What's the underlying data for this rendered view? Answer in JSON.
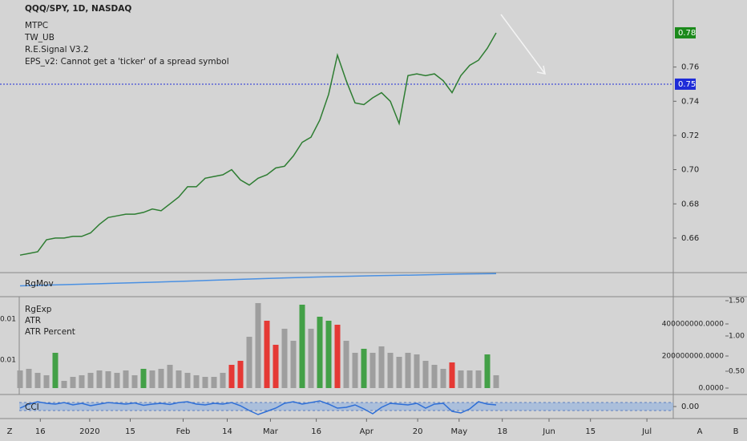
{
  "chart_data": [
    {
      "type": "line",
      "legend": [
        "QQQ/SPY, 1D, NASDAQ",
        "MTPC",
        "TW_UB",
        "R.E.Signal V3.2",
        "EPS_v2: Cannot get a 'ticker' of a spread symbol"
      ],
      "x": [
        0,
        1,
        2,
        3,
        4,
        5,
        6,
        7,
        8,
        9,
        10,
        11,
        12,
        13,
        14,
        15,
        16,
        17,
        18,
        19,
        20,
        21,
        22,
        23,
        24,
        25,
        26,
        27,
        28,
        29,
        30,
        31,
        32,
        33,
        34,
        35,
        36,
        37,
        38,
        39,
        40,
        41,
        42,
        43,
        44,
        45,
        46,
        47,
        48,
        49,
        50,
        51,
        52,
        53,
        54
      ],
      "values": [
        0.65,
        0.651,
        0.652,
        0.659,
        0.66,
        0.66,
        0.661,
        0.661,
        0.663,
        0.668,
        0.672,
        0.673,
        0.674,
        0.674,
        0.675,
        0.677,
        0.676,
        0.68,
        0.684,
        0.69,
        0.69,
        0.695,
        0.696,
        0.697,
        0.7,
        0.694,
        0.691,
        0.695,
        0.697,
        0.701,
        0.702,
        0.708,
        0.716,
        0.719,
        0.729,
        0.744,
        0.767,
        0.752,
        0.739,
        0.738,
        0.742,
        0.745,
        0.74,
        0.727,
        0.755,
        0.756,
        0.755,
        0.756,
        0.752,
        0.745,
        0.755,
        0.761,
        0.764,
        0.771,
        0.78
      ],
      "color": "#2e7d32",
      "xlim": [
        -2.2727,
        74.09
      ],
      "xticks": [
        {
          "value": 2.3,
          "label": "16"
        },
        {
          "value": 7.9,
          "label": "2020"
        },
        {
          "value": 12.5,
          "label": "15"
        },
        {
          "value": 18.5,
          "label": "Feb"
        },
        {
          "value": 23.5,
          "label": "14"
        },
        {
          "value": 28.4,
          "label": "Mar"
        },
        {
          "value": 33.6,
          "label": "16"
        },
        {
          "value": 39.3,
          "label": "Apr"
        },
        {
          "value": 45.1,
          "label": "20"
        },
        {
          "value": 49.8,
          "label": "May"
        },
        {
          "value": 54.7,
          "label": "18"
        },
        {
          "value": 60,
          "label": "Jun"
        },
        {
          "value": 64.7,
          "label": "15"
        },
        {
          "value": 71.1,
          "label": "Jul"
        }
      ],
      "ylim": [
        0.6398,
        0.7992
      ],
      "yticks": [
        0.66,
        0.68,
        {
          "value": 0.7,
          "label": "0.70"
        },
        0.72,
        0.74,
        0.76
      ],
      "badges": [
        {
          "value": 0.78,
          "color": "#1b8a1b"
        },
        {
          "value": 0.75,
          "color": "#1e2bd8"
        }
      ]
    },
    {
      "type": "line",
      "title": "RgMov",
      "x": [
        0,
        5,
        10,
        15,
        20,
        25,
        30,
        35,
        40,
        45,
        50,
        54
      ],
      "values": [
        0.45,
        0.5,
        0.55,
        0.6,
        0.66,
        0.72,
        0.78,
        0.83,
        0.87,
        0.9,
        0.94,
        0.96
      ],
      "color": "#4a90e2",
      "ylim": [
        0,
        1
      ]
    },
    {
      "type": "bar",
      "legend": [
        "RgExp",
        "ATR",
        "ATR Percent"
      ],
      "values": [
        110000000,
        120000000,
        95000000,
        80000000,
        220000000,
        45000000,
        70000000,
        80000000,
        95000000,
        110000000,
        105000000,
        95000000,
        110000000,
        80000000,
        120000000,
        110000000,
        120000000,
        145000000,
        110000000,
        95000000,
        80000000,
        70000000,
        70000000,
        95000000,
        145000000,
        170000000,
        320000000,
        530000000,
        420000000,
        270000000,
        370000000,
        295000000,
        520000000,
        370000000,
        445000000,
        420000000,
        395000000,
        295000000,
        220000000,
        245000000,
        220000000,
        260000000,
        220000000,
        195000000,
        220000000,
        210000000,
        170000000,
        145000000,
        120000000,
        160000000,
        110000000,
        110000000,
        110000000,
        210000000,
        80000000
      ],
      "colors": [
        "#9e9e9e",
        "#9e9e9e",
        "#9e9e9e",
        "#9e9e9e",
        "#43a047",
        "#9e9e9e",
        "#9e9e9e",
        "#9e9e9e",
        "#9e9e9e",
        "#9e9e9e",
        "#9e9e9e",
        "#9e9e9e",
        "#9e9e9e",
        "#9e9e9e",
        "#43a047",
        "#9e9e9e",
        "#9e9e9e",
        "#9e9e9e",
        "#9e9e9e",
        "#9e9e9e",
        "#9e9e9e",
        "#9e9e9e",
        "#9e9e9e",
        "#9e9e9e",
        "#e53935",
        "#e53935",
        "#9e9e9e",
        "#9e9e9e",
        "#e53935",
        "#e53935",
        "#9e9e9e",
        "#9e9e9e",
        "#43a047",
        "#9e9e9e",
        "#43a047",
        "#43a047",
        "#e53935",
        "#9e9e9e",
        "#9e9e9e",
        "#43a047",
        "#9e9e9e",
        "#9e9e9e",
        "#9e9e9e",
        "#9e9e9e",
        "#9e9e9e",
        "#9e9e9e",
        "#9e9e9e",
        "#9e9e9e",
        "#9e9e9e",
        "#e53935",
        "#9e9e9e",
        "#9e9e9e",
        "#9e9e9e",
        "#43a047",
        "#9e9e9e"
      ],
      "ylim": [
        -40000000,
        570000000
      ],
      "yticks": [
        {
          "value": 400000000,
          "label": "400000000.0000"
        },
        {
          "value": 200000000,
          "label": "200000000.0000"
        },
        {
          "value": 0,
          "label": "0.0000"
        }
      ],
      "y2lim": [
        0.17,
        1.557
      ],
      "y2ticks": [
        {
          "value": 1.5,
          "label": "1.50"
        },
        {
          "value": 1,
          "label": "1.00"
        },
        {
          "value": 0.5,
          "label": "0.50"
        }
      ],
      "left_labels": [
        "0.01",
        "0.01"
      ]
    },
    {
      "type": "line",
      "title": "CCI",
      "x": [
        0,
        1,
        2,
        3,
        4,
        5,
        6,
        7,
        8,
        9,
        10,
        11,
        12,
        13,
        14,
        15,
        16,
        17,
        18,
        19,
        20,
        21,
        22,
        23,
        24,
        25,
        26,
        27,
        28,
        29,
        30,
        31,
        32,
        33,
        34,
        35,
        36,
        37,
        38,
        39,
        40,
        41,
        42,
        43,
        44,
        45,
        46,
        47,
        48,
        49,
        50,
        51,
        52,
        53,
        54
      ],
      "values": [
        -40,
        60,
        120,
        80,
        60,
        100,
        40,
        80,
        20,
        60,
        100,
        80,
        60,
        90,
        30,
        60,
        80,
        50,
        100,
        120,
        60,
        40,
        80,
        60,
        100,
        20,
        -100,
        -200,
        -120,
        -40,
        80,
        120,
        60,
        100,
        140,
        60,
        -40,
        -20,
        40,
        -60,
        -180,
        -20,
        80,
        60,
        40,
        80,
        -40,
        60,
        80,
        -120,
        -160,
        -60,
        120,
        60,
        40
      ],
      "color": "#2f6fd6",
      "ylim": [
        -300,
        300
      ],
      "yticks": [
        {
          "value": 0,
          "label": "0.00"
        }
      ],
      "band": [
        -100,
        100
      ]
    }
  ],
  "buttons": [
    "Z",
    "A",
    "B"
  ]
}
